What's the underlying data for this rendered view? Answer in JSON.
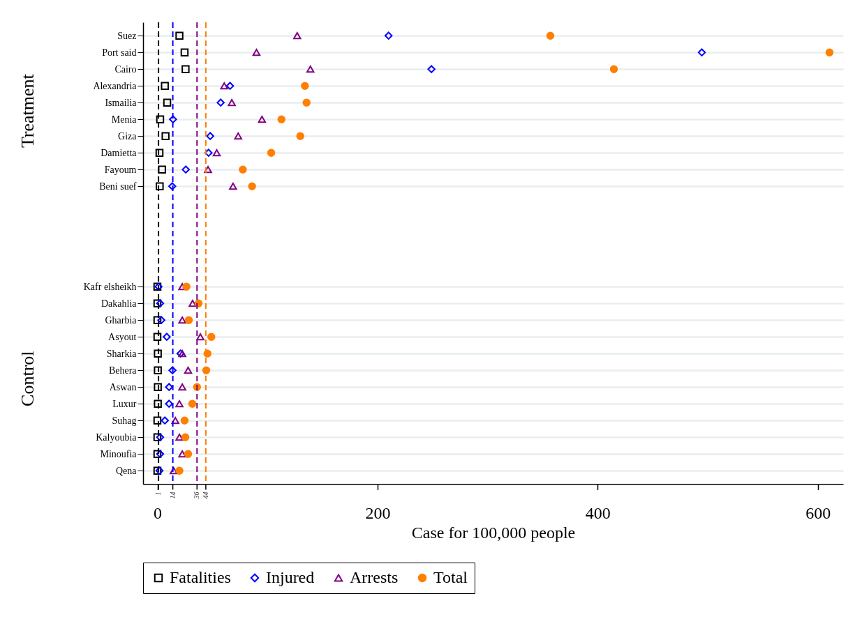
{
  "chart_data": {
    "type": "scatter",
    "orientation": "horizontal",
    "xlabel": "Case for 100,000 people",
    "categories": [
      "Suez",
      "Port said",
      "Cairo",
      "Alexandria",
      "Ismailia",
      "Menia",
      "Giza",
      "Damietta",
      "Fayoum",
      "Beni suef",
      null,
      null,
      null,
      null,
      null,
      "Kafr elsheikh",
      "Dakahlia",
      "Gharbia",
      "Asyout",
      "Sharkia",
      "Behera",
      "Aswan",
      "Luxur",
      "Suhag",
      "Kalyoubia",
      "Minoufia",
      "Qena"
    ],
    "series": [
      {
        "name": "Fatalities",
        "color": "#000000",
        "marker": "square",
        "values": [
          20,
          24.7,
          25.6,
          6.8,
          8.9,
          2.5,
          7.4,
          1.9,
          4.2,
          2.1,
          null,
          null,
          null,
          null,
          null,
          0,
          0,
          0,
          0,
          0.4,
          0.4,
          0.4,
          0.4,
          0,
          0,
          0,
          0
        ]
      },
      {
        "name": "Injured",
        "color": "#0000ff",
        "marker": "diamond",
        "values": [
          210,
          494.6,
          249,
          66,
          57.5,
          14.2,
          48,
          46.5,
          25.8,
          13.5,
          null,
          null,
          null,
          null,
          null,
          1,
          2.5,
          3.6,
          8.5,
          21,
          13.7,
          10.6,
          10.6,
          6.8,
          2.5,
          2.5,
          1.9
        ]
      },
      {
        "name": "Arrests",
        "color": "#800080",
        "marker": "triangle",
        "values": [
          127,
          90,
          139,
          60.7,
          67.6,
          95,
          73.4,
          53.9,
          46,
          68.7,
          null,
          null,
          null,
          null,
          null,
          22.6,
          32,
          22.6,
          39,
          22.6,
          27.9,
          22.6,
          20,
          16.3,
          20,
          22.6,
          14.8
        ]
      },
      {
        "name": "Total",
        "color": "#ff7f00",
        "marker": "circle",
        "values": [
          357,
          610.6,
          414.7,
          134,
          135.5,
          112.7,
          129.8,
          103.4,
          77.6,
          86,
          null,
          null,
          null,
          null,
          null,
          26.4,
          37.4,
          28.5,
          49,
          45.5,
          44.4,
          36,
          31.7,
          24.7,
          25.4,
          27.9,
          20
        ]
      }
    ],
    "xlim": [
      -13,
      623
    ],
    "xticks": [
      0,
      200,
      400,
      600
    ],
    "ref_lines": [
      {
        "axis": "x",
        "value": 1,
        "label": "1",
        "color": "#000000",
        "line_style": "dashed"
      },
      {
        "axis": "x",
        "value": 14,
        "label": "14",
        "color": "#0000ff",
        "line_style": "dashed"
      },
      {
        "axis": "x",
        "value": 36,
        "label": "36",
        "color": "#800080",
        "line_style": "dashed"
      },
      {
        "axis": "x",
        "value": 44,
        "label": "44",
        "color": "#ff7f00",
        "line_style": "dashed"
      }
    ],
    "annotations": [
      "Treatment",
      "Control"
    ],
    "grid": "y",
    "legend": "bottom"
  }
}
